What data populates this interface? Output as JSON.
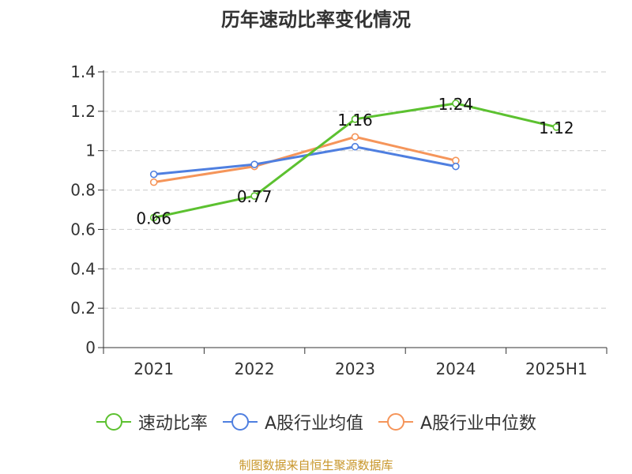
{
  "chart_data": {
    "type": "line",
    "title": "历年速动比率变化情况",
    "categories": [
      "2021",
      "2022",
      "2023",
      "2024",
      "2025H1"
    ],
    "series": [
      {
        "name": "速动比率",
        "color": "#5cc130",
        "values": [
          0.66,
          0.77,
          1.16,
          1.24,
          1.12
        ],
        "labels": [
          "0.66",
          "0.77",
          "1.16",
          "1.24",
          "1.12"
        ]
      },
      {
        "name": "A股行业均值",
        "color": "#4f7fe0",
        "values": [
          0.88,
          0.93,
          1.02,
          0.92,
          null
        ]
      },
      {
        "name": "A股行业中位数",
        "color": "#f5955a",
        "values": [
          0.84,
          0.92,
          1.07,
          0.95,
          null
        ]
      }
    ],
    "y_ticks": [
      "0",
      "0.2",
      "0.4",
      "0.6",
      "0.8",
      "1",
      "1.2",
      "1.4"
    ],
    "ylim": [
      0,
      1.4
    ],
    "grid": true,
    "legend_position": "bottom"
  },
  "source": "制图数据来自恒生聚源数据库"
}
